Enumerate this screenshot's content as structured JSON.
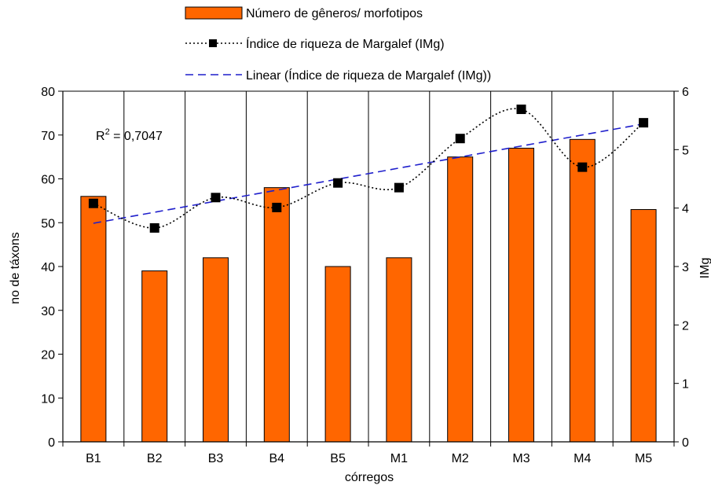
{
  "chart_data": {
    "type": "bar",
    "title": "",
    "xlabel": "córregos",
    "ylabel": "no de táxons",
    "y2label": "IMg",
    "categories": [
      "B1",
      "B2",
      "B3",
      "B4",
      "B5",
      "M1",
      "M2",
      "M3",
      "M4",
      "M5"
    ],
    "ylim": [
      0,
      80
    ],
    "y_ticks": [
      0,
      10,
      20,
      30,
      40,
      50,
      60,
      70,
      80
    ],
    "y2lim": [
      0,
      6
    ],
    "y2_ticks": [
      0,
      1,
      2,
      3,
      4,
      5,
      6
    ],
    "series": [
      {
        "name": "Número de gêneros/ morfotipos",
        "type": "bar",
        "axis": "left",
        "color": "#ff6600",
        "values": [
          56,
          39,
          42,
          58,
          40,
          42,
          65,
          67,
          69,
          53
        ]
      },
      {
        "name": "Índice de riqueza de Margalef (IMg)",
        "type": "line",
        "style": "dotted-smooth-square-markers",
        "axis": "right",
        "color": "#000000",
        "values": [
          4.08,
          3.66,
          4.18,
          4.01,
          4.43,
          4.35,
          5.19,
          5.69,
          4.7,
          5.46
        ]
      },
      {
        "name": "Linear (Índice de riqueza de Margalef (IMg))",
        "type": "trendline",
        "style": "dashed",
        "axis": "right",
        "color": "#1f1fcc",
        "start": 3.74,
        "end": 5.44
      }
    ],
    "annotation": "R² = 0,7047",
    "grid": {
      "vertical_category_lines": true,
      "horizontal": false
    },
    "legend": "top-center"
  }
}
